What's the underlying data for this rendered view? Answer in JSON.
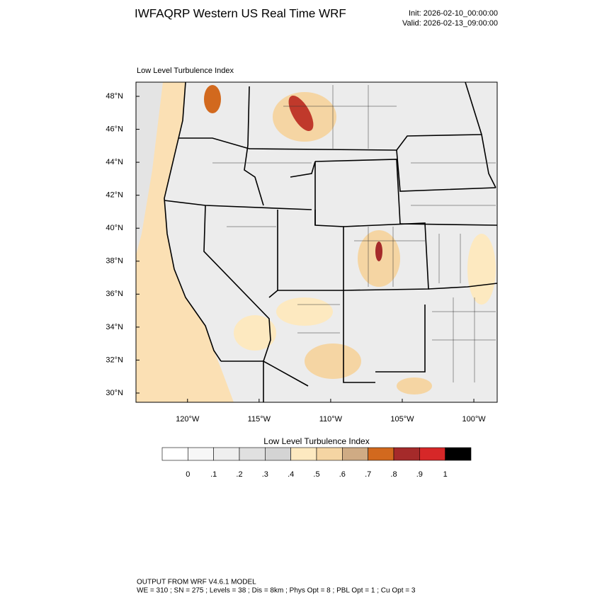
{
  "header": {
    "title": "IWFAQRP Western US Real Time WRF",
    "init": "Init: 2026-02-10_00:00:00",
    "valid": "Valid: 2026-02-13_09:00:00"
  },
  "chart_data": {
    "type": "map",
    "subtitle": "Low Level Turbulence Index",
    "xlim": [
      -123.6,
      -98.37
    ],
    "ylim": [
      29.44,
      48.86
    ],
    "xticks": [
      {
        "value": -120,
        "label": "120°W"
      },
      {
        "value": -115,
        "label": "115°W"
      },
      {
        "value": -110,
        "label": "110°W"
      },
      {
        "value": -105,
        "label": "105°W"
      },
      {
        "value": -100,
        "label": "100°W"
      }
    ],
    "yticks": [
      {
        "value": 30,
        "label": "30°N"
      },
      {
        "value": 32,
        "label": "32°N"
      },
      {
        "value": 34,
        "label": "34°N"
      },
      {
        "value": 36,
        "label": "36°N"
      },
      {
        "value": 38,
        "label": "38°N"
      },
      {
        "value": 40,
        "label": "40°N"
      },
      {
        "value": 42,
        "label": "42°N"
      },
      {
        "value": 44,
        "label": "44°N"
      },
      {
        "value": 46,
        "label": "46°N"
      },
      {
        "value": 48,
        "label": "48°N"
      }
    ],
    "colorbar": {
      "title": "Low Level Turbulence Index",
      "levels": [
        0,
        {
          "value": 0.1,
          "label": ".1"
        },
        {
          "value": 0.2,
          "label": ".2"
        },
        {
          "value": 0.3,
          "label": ".3"
        },
        {
          "value": 0.4,
          "label": ".4"
        },
        {
          "value": 0.5,
          "label": ".5"
        },
        {
          "value": 0.6,
          "label": ".6"
        },
        {
          "value": 0.7,
          "label": ".7"
        },
        {
          "value": 0.8,
          "label": ".8"
        },
        {
          "value": 0.9,
          "label": ".9"
        },
        1
      ],
      "colors": [
        "#ffffff",
        "#f7f7f7",
        "#efefef",
        "#e0e0e0",
        "#d4d4d4",
        "#fde9c0",
        "#f5d5a3",
        "#cfab84",
        "#d2691e",
        "#a52a2a",
        "#d62728",
        "#000000"
      ]
    }
  },
  "footer": {
    "line1": "OUTPUT FROM WRF V4.6.1 MODEL",
    "line2": "WE = 310 ; SN = 275 ; Levels = 38 ; Dis = 8km ; Phys Opt = 8 ; PBL Opt = 1 ; Cu Opt = 3"
  }
}
